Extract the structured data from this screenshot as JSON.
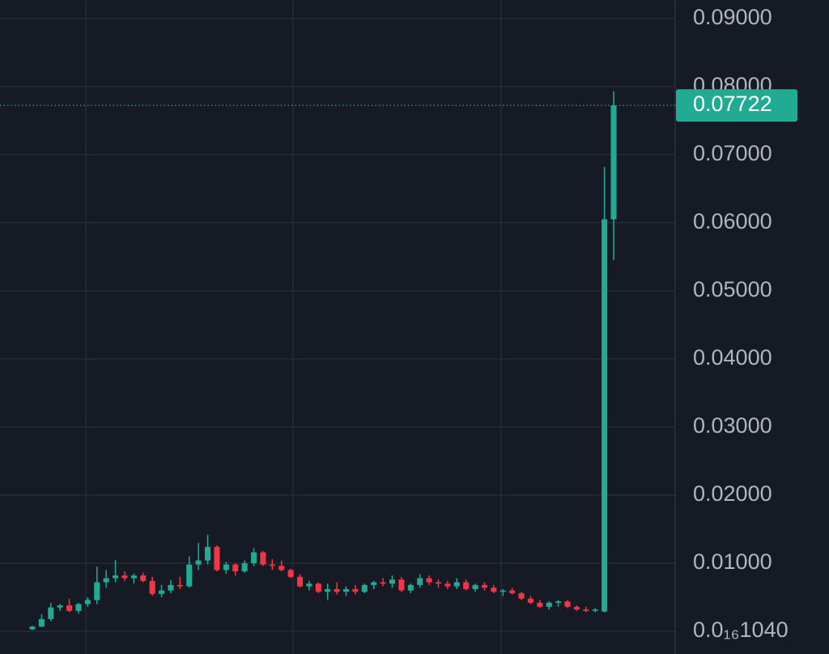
{
  "chart_data": {
    "type": "candlestick",
    "up_color": "#22ab94",
    "down_color": "#f23645",
    "grid": true,
    "ylim": [
      -0.00333,
      0.0927
    ],
    "yticks": [
      {
        "value": 1.04e-16,
        "label": "0.0₁₆1040"
      },
      {
        "value": 0.01,
        "label": "0.01000"
      },
      {
        "value": 0.02,
        "label": "0.02000"
      },
      {
        "value": 0.03,
        "label": "0.03000"
      },
      {
        "value": 0.04,
        "label": "0.04000"
      },
      {
        "value": 0.05,
        "label": "0.05000"
      },
      {
        "value": 0.06,
        "label": "0.06000"
      },
      {
        "value": 0.07,
        "label": "0.07000"
      },
      {
        "value": 0.08,
        "label": "0.08000"
      },
      {
        "value": 0.09,
        "label": "0.09000"
      }
    ],
    "last_price": 0.07722,
    "open": [
      0.0003,
      0.0007,
      0.0018,
      0.0035,
      0.0038,
      0.003,
      0.004,
      0.0046,
      0.0072,
      0.0078,
      0.0082,
      0.0078,
      0.0082,
      0.0074,
      0.0055,
      0.006,
      0.0068,
      0.0066,
      0.0098,
      0.0104,
      0.0124,
      0.009,
      0.0098,
      0.0088,
      0.01,
      0.0116,
      0.0098,
      0.0096,
      0.009,
      0.008,
      0.0066,
      0.007,
      0.0058,
      0.0062,
      0.0058,
      0.0062,
      0.0058,
      0.0068,
      0.0072,
      0.007,
      0.0076,
      0.006,
      0.0068,
      0.0078,
      0.0072,
      0.007,
      0.0066,
      0.0072,
      0.0062,
      0.0068,
      0.0064,
      0.0058,
      0.006,
      0.0056,
      0.0048,
      0.0042,
      0.0036,
      0.0042,
      0.0044,
      0.0036,
      0.0032,
      0.003,
      0.0029,
      0.0605
    ],
    "high": [
      0.0008,
      0.0025,
      0.0042,
      0.004,
      0.0048,
      0.0042,
      0.005,
      0.0095,
      0.009,
      0.0105,
      0.0088,
      0.0085,
      0.0086,
      0.008,
      0.0068,
      0.0075,
      0.008,
      0.011,
      0.013,
      0.0142,
      0.0126,
      0.0102,
      0.01,
      0.0104,
      0.0122,
      0.0118,
      0.0106,
      0.0104,
      0.0092,
      0.0084,
      0.0074,
      0.0072,
      0.007,
      0.0072,
      0.0066,
      0.0068,
      0.007,
      0.0074,
      0.0078,
      0.0082,
      0.008,
      0.007,
      0.0084,
      0.0082,
      0.0076,
      0.0074,
      0.0078,
      0.0076,
      0.007,
      0.0072,
      0.0068,
      0.0062,
      0.0064,
      0.0058,
      0.0052,
      0.0046,
      0.0044,
      0.0046,
      0.0046,
      0.0038,
      0.0036,
      0.0034,
      0.0682,
      0.0793
    ],
    "low": [
      0.0002,
      0.0006,
      0.0015,
      0.003,
      0.0028,
      0.0026,
      0.0036,
      0.004,
      0.0064,
      0.0072,
      0.0074,
      0.007,
      0.0072,
      0.0052,
      0.005,
      0.0056,
      0.0062,
      0.0064,
      0.009,
      0.0098,
      0.0088,
      0.0084,
      0.0082,
      0.0086,
      0.0096,
      0.0096,
      0.009,
      0.0088,
      0.0078,
      0.0064,
      0.006,
      0.0056,
      0.0046,
      0.0054,
      0.0052,
      0.0054,
      0.0056,
      0.0062,
      0.0066,
      0.0064,
      0.0058,
      0.0056,
      0.0064,
      0.0068,
      0.0064,
      0.0062,
      0.0062,
      0.006,
      0.0058,
      0.006,
      0.0056,
      0.0052,
      0.0054,
      0.0046,
      0.004,
      0.0034,
      0.0032,
      0.0036,
      0.0034,
      0.003,
      0.0028,
      0.0028,
      0.0028,
      0.0545
    ],
    "close": [
      0.0007,
      0.0018,
      0.0035,
      0.0038,
      0.003,
      0.004,
      0.0046,
      0.0072,
      0.0078,
      0.0082,
      0.0078,
      0.0082,
      0.0074,
      0.0055,
      0.006,
      0.0068,
      0.0066,
      0.0098,
      0.0104,
      0.0124,
      0.009,
      0.0098,
      0.0088,
      0.01,
      0.0116,
      0.0098,
      0.0096,
      0.009,
      0.008,
      0.0066,
      0.007,
      0.0058,
      0.0062,
      0.0058,
      0.0062,
      0.0058,
      0.0068,
      0.0072,
      0.007,
      0.0076,
      0.006,
      0.0068,
      0.0078,
      0.0072,
      0.007,
      0.0066,
      0.0072,
      0.0062,
      0.0068,
      0.0064,
      0.0058,
      0.006,
      0.0056,
      0.0048,
      0.0042,
      0.0036,
      0.0042,
      0.0044,
      0.0036,
      0.0032,
      0.003,
      0.0032,
      0.0605,
      0.07722
    ]
  }
}
